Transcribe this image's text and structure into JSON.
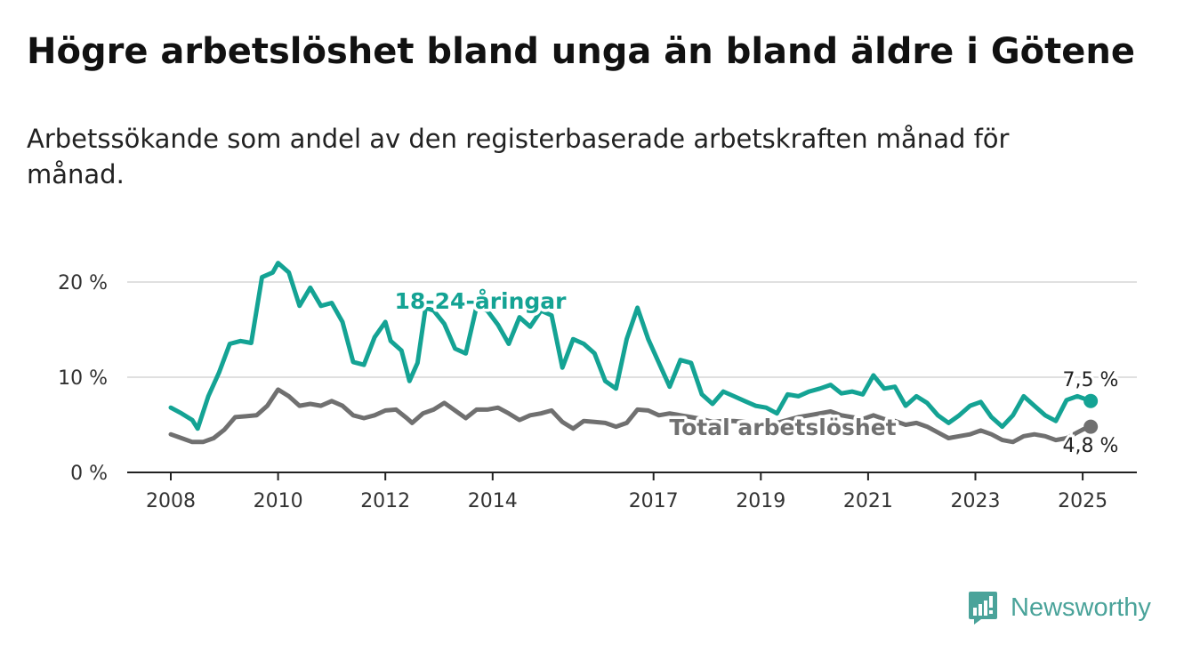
{
  "title": "Högre arbetslöshet bland unga än bland äldre i Götene",
  "subtitle": "Arbetssökande som andel av den registerbaserade arbetskraften månad för månad.",
  "brand": {
    "name": "Newsworthy",
    "color": "#4aa39a"
  },
  "chart_data": {
    "type": "line",
    "title": "Högre arbetslöshet bland unga än bland äldre i Götene",
    "subtitle": "Arbetssökande som andel av den registerbaserade arbetskraften månad för månad.",
    "xlabel": "",
    "ylabel": "",
    "x_ticks": [
      "2008",
      "2010",
      "2012",
      "2014",
      "2017",
      "2019",
      "2021",
      "2023",
      "2025"
    ],
    "y_ticks": [
      "0 %",
      "10 %",
      "20 %"
    ],
    "xlim": [
      2008.0,
      2026.0
    ],
    "ylim": [
      0,
      22
    ],
    "grid": true,
    "legend": "inline labels",
    "series": [
      {
        "name": "18-24-åringar",
        "color": "#14a394",
        "end_label": "7,5 %",
        "points": [
          [
            2008.0,
            6.8
          ],
          [
            2008.2,
            6.2
          ],
          [
            2008.4,
            5.5
          ],
          [
            2008.5,
            4.6
          ],
          [
            2008.7,
            8.0
          ],
          [
            2008.9,
            10.5
          ],
          [
            2009.1,
            13.5
          ],
          [
            2009.3,
            13.8
          ],
          [
            2009.5,
            13.6
          ],
          [
            2009.7,
            20.5
          ],
          [
            2009.9,
            21.0
          ],
          [
            2010.0,
            22.0
          ],
          [
            2010.2,
            21.0
          ],
          [
            2010.4,
            17.5
          ],
          [
            2010.6,
            19.4
          ],
          [
            2010.8,
            17.5
          ],
          [
            2011.0,
            17.8
          ],
          [
            2011.2,
            15.8
          ],
          [
            2011.4,
            11.6
          ],
          [
            2011.6,
            11.3
          ],
          [
            2011.8,
            14.2
          ],
          [
            2012.0,
            15.8
          ],
          [
            2012.1,
            13.8
          ],
          [
            2012.3,
            12.8
          ],
          [
            2012.45,
            9.6
          ],
          [
            2012.6,
            11.5
          ],
          [
            2012.75,
            17.3
          ],
          [
            2012.9,
            17.0
          ],
          [
            2013.1,
            15.6
          ],
          [
            2013.3,
            13.0
          ],
          [
            2013.5,
            12.5
          ],
          [
            2013.7,
            17.4
          ],
          [
            2013.9,
            17.0
          ],
          [
            2014.1,
            15.5
          ],
          [
            2014.3,
            13.5
          ],
          [
            2014.5,
            16.3
          ],
          [
            2014.7,
            15.3
          ],
          [
            2014.9,
            17.0
          ],
          [
            2015.1,
            16.5
          ],
          [
            2015.3,
            11.0
          ],
          [
            2015.5,
            14.0
          ],
          [
            2015.7,
            13.5
          ],
          [
            2015.9,
            12.5
          ],
          [
            2016.1,
            9.6
          ],
          [
            2016.3,
            8.8
          ],
          [
            2016.5,
            14.0
          ],
          [
            2016.7,
            17.3
          ],
          [
            2016.9,
            14.0
          ],
          [
            2017.1,
            11.5
          ],
          [
            2017.3,
            9.0
          ],
          [
            2017.5,
            11.8
          ],
          [
            2017.7,
            11.5
          ],
          [
            2017.9,
            8.2
          ],
          [
            2018.1,
            7.2
          ],
          [
            2018.3,
            8.5
          ],
          [
            2018.5,
            8.0
          ],
          [
            2018.7,
            7.5
          ],
          [
            2018.9,
            7.0
          ],
          [
            2019.1,
            6.8
          ],
          [
            2019.3,
            6.2
          ],
          [
            2019.5,
            8.2
          ],
          [
            2019.7,
            8.0
          ],
          [
            2019.9,
            8.5
          ],
          [
            2020.1,
            8.8
          ],
          [
            2020.3,
            9.2
          ],
          [
            2020.5,
            8.3
          ],
          [
            2020.7,
            8.5
          ],
          [
            2020.9,
            8.2
          ],
          [
            2021.1,
            10.2
          ],
          [
            2021.3,
            8.8
          ],
          [
            2021.5,
            9.0
          ],
          [
            2021.7,
            7.0
          ],
          [
            2021.9,
            8.0
          ],
          [
            2022.1,
            7.3
          ],
          [
            2022.3,
            6.0
          ],
          [
            2022.5,
            5.2
          ],
          [
            2022.7,
            6.0
          ],
          [
            2022.9,
            7.0
          ],
          [
            2023.1,
            7.4
          ],
          [
            2023.3,
            5.8
          ],
          [
            2023.5,
            4.8
          ],
          [
            2023.7,
            6.0
          ],
          [
            2023.9,
            8.0
          ],
          [
            2024.1,
            7.0
          ],
          [
            2024.3,
            6.0
          ],
          [
            2024.5,
            5.4
          ],
          [
            2024.7,
            7.6
          ],
          [
            2024.9,
            8.0
          ],
          [
            2025.0,
            7.8
          ],
          [
            2025.15,
            7.5
          ]
        ]
      },
      {
        "name": "Total arbetslöshet",
        "color": "#707070",
        "end_label": "4,8 %",
        "points": [
          [
            2008.0,
            4.0
          ],
          [
            2008.2,
            3.6
          ],
          [
            2008.4,
            3.2
          ],
          [
            2008.6,
            3.2
          ],
          [
            2008.8,
            3.6
          ],
          [
            2009.0,
            4.5
          ],
          [
            2009.2,
            5.8
          ],
          [
            2009.4,
            5.9
          ],
          [
            2009.6,
            6.0
          ],
          [
            2009.8,
            7.0
          ],
          [
            2010.0,
            8.7
          ],
          [
            2010.2,
            8.0
          ],
          [
            2010.4,
            7.0
          ],
          [
            2010.6,
            7.2
          ],
          [
            2010.8,
            7.0
          ],
          [
            2011.0,
            7.5
          ],
          [
            2011.2,
            7.0
          ],
          [
            2011.4,
            6.0
          ],
          [
            2011.6,
            5.7
          ],
          [
            2011.8,
            6.0
          ],
          [
            2012.0,
            6.5
          ],
          [
            2012.2,
            6.6
          ],
          [
            2012.4,
            5.7
          ],
          [
            2012.5,
            5.2
          ],
          [
            2012.7,
            6.2
          ],
          [
            2012.9,
            6.6
          ],
          [
            2013.1,
            7.3
          ],
          [
            2013.3,
            6.5
          ],
          [
            2013.5,
            5.7
          ],
          [
            2013.7,
            6.6
          ],
          [
            2013.9,
            6.6
          ],
          [
            2014.1,
            6.8
          ],
          [
            2014.3,
            6.2
          ],
          [
            2014.5,
            5.5
          ],
          [
            2014.7,
            6.0
          ],
          [
            2014.9,
            6.2
          ],
          [
            2015.1,
            6.5
          ],
          [
            2015.3,
            5.3
          ],
          [
            2015.5,
            4.6
          ],
          [
            2015.7,
            5.4
          ],
          [
            2015.9,
            5.3
          ],
          [
            2016.1,
            5.2
          ],
          [
            2016.3,
            4.8
          ],
          [
            2016.5,
            5.2
          ],
          [
            2016.7,
            6.6
          ],
          [
            2016.9,
            6.5
          ],
          [
            2017.1,
            6.0
          ],
          [
            2017.3,
            6.2
          ],
          [
            2017.5,
            6.0
          ],
          [
            2017.7,
            5.8
          ],
          [
            2017.9,
            5.6
          ],
          [
            2018.1,
            5.3
          ],
          [
            2018.3,
            5.4
          ],
          [
            2018.5,
            5.4
          ],
          [
            2018.7,
            5.3
          ],
          [
            2018.9,
            5.0
          ],
          [
            2019.1,
            5.2
          ],
          [
            2019.3,
            5.2
          ],
          [
            2019.5,
            5.5
          ],
          [
            2019.7,
            5.8
          ],
          [
            2019.9,
            6.0
          ],
          [
            2020.1,
            6.2
          ],
          [
            2020.3,
            6.4
          ],
          [
            2020.5,
            6.0
          ],
          [
            2020.7,
            5.8
          ],
          [
            2020.9,
            5.6
          ],
          [
            2021.1,
            6.0
          ],
          [
            2021.3,
            5.6
          ],
          [
            2021.5,
            5.4
          ],
          [
            2021.7,
            5.0
          ],
          [
            2021.9,
            5.2
          ],
          [
            2022.1,
            4.8
          ],
          [
            2022.3,
            4.2
          ],
          [
            2022.5,
            3.6
          ],
          [
            2022.7,
            3.8
          ],
          [
            2022.9,
            4.0
          ],
          [
            2023.1,
            4.4
          ],
          [
            2023.3,
            4.0
          ],
          [
            2023.5,
            3.4
          ],
          [
            2023.7,
            3.2
          ],
          [
            2023.9,
            3.8
          ],
          [
            2024.1,
            4.0
          ],
          [
            2024.3,
            3.8
          ],
          [
            2024.5,
            3.4
          ],
          [
            2024.7,
            3.6
          ],
          [
            2024.9,
            4.2
          ],
          [
            2025.0,
            4.5
          ],
          [
            2025.15,
            4.8
          ]
        ]
      }
    ]
  }
}
